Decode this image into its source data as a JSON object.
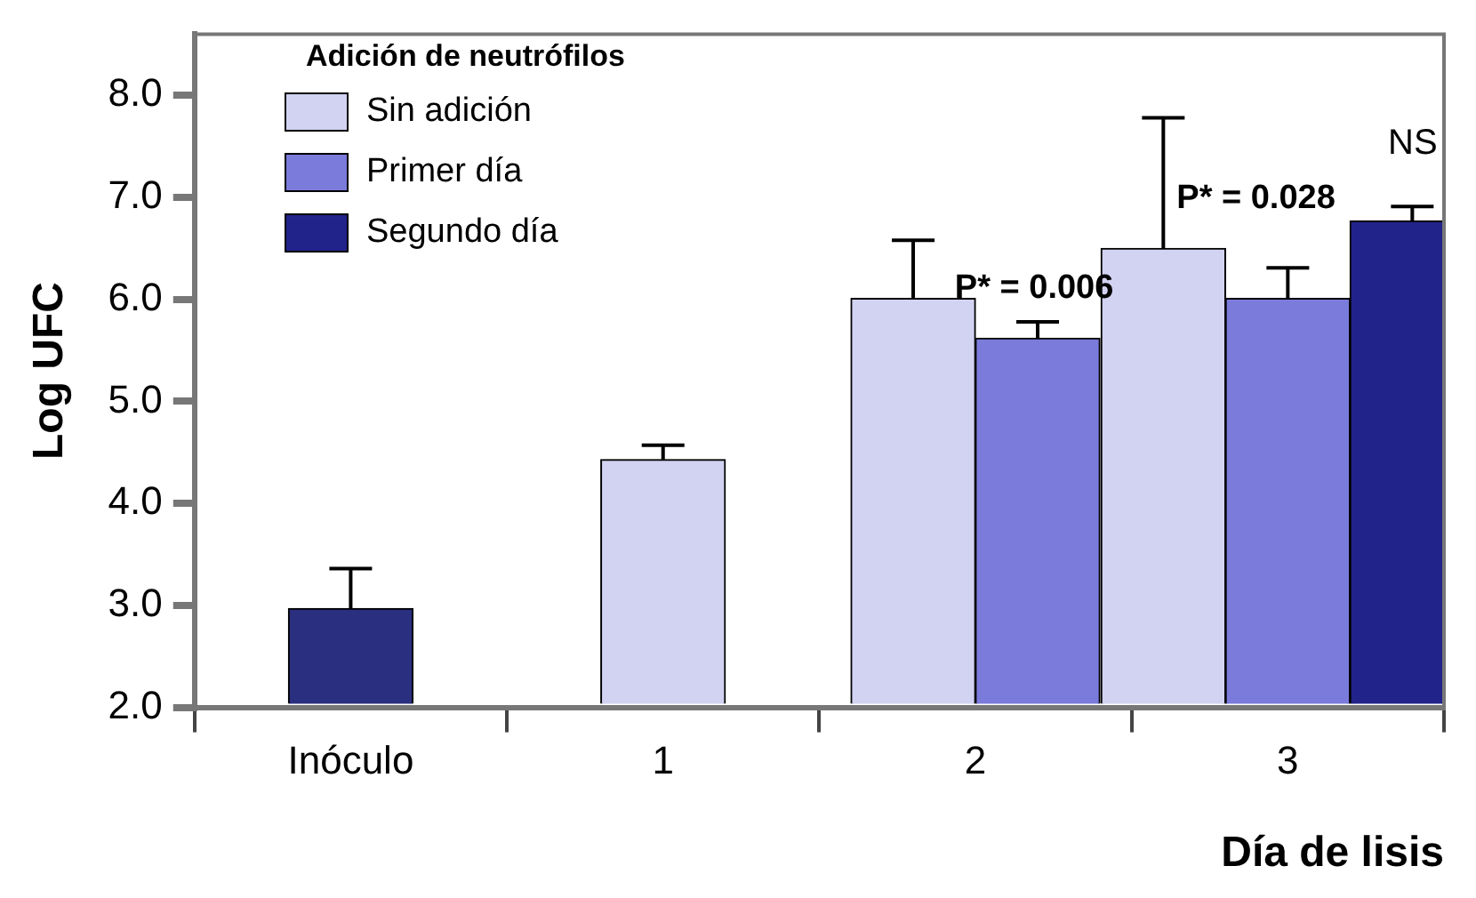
{
  "chart_data": {
    "type": "bar",
    "xlabel": "Día de lisis",
    "ylabel": "Log UFC",
    "legend_title": "Adición de neutrófilos",
    "legend": "top left",
    "grid": false,
    "categories": [
      "Inóculo",
      "1",
      "2",
      "3"
    ],
    "ylim": [
      2,
      8.6
    ],
    "yticks": [
      {
        "value": 2,
        "label": "2.0"
      },
      {
        "value": 3,
        "label": "3.0"
      },
      {
        "value": 4,
        "label": "4.0"
      },
      {
        "value": 5,
        "label": "5.0"
      },
      {
        "value": 6,
        "label": "6.0"
      },
      {
        "value": 7,
        "label": "7.0"
      },
      {
        "value": 8,
        "label": "8.0"
      }
    ],
    "series": [
      {
        "color": "#2a2f80",
        "values": [
          2.97,
          null,
          null,
          null
        ],
        "errors": [
          [
            2.97,
            3.36
          ],
          null,
          null,
          null
        ]
      },
      {
        "name": "Sin adición",
        "color": "#d2d2f2",
        "values": [
          null,
          4.43,
          6.01,
          6.5
        ],
        "errors": [
          null,
          [
            4.43,
            4.57
          ],
          [
            6.01,
            6.58
          ],
          [
            6.5,
            7.78
          ]
        ]
      },
      {
        "name": "Primer día",
        "color": "#7b7bdc",
        "values": [
          null,
          null,
          5.62,
          6.01
        ],
        "errors": [
          null,
          null,
          [
            5.62,
            5.78
          ],
          [
            6.01,
            6.31
          ]
        ]
      },
      {
        "name": "Segundo día",
        "color": "#22238a",
        "values": [
          null,
          null,
          null,
          6.77
        ],
        "errors": [
          null,
          null,
          null,
          [
            6.77,
            6.91
          ]
        ]
      }
    ],
    "annotations": [
      "P* = 0.006",
      "P* = 0.028",
      "NS"
    ]
  }
}
